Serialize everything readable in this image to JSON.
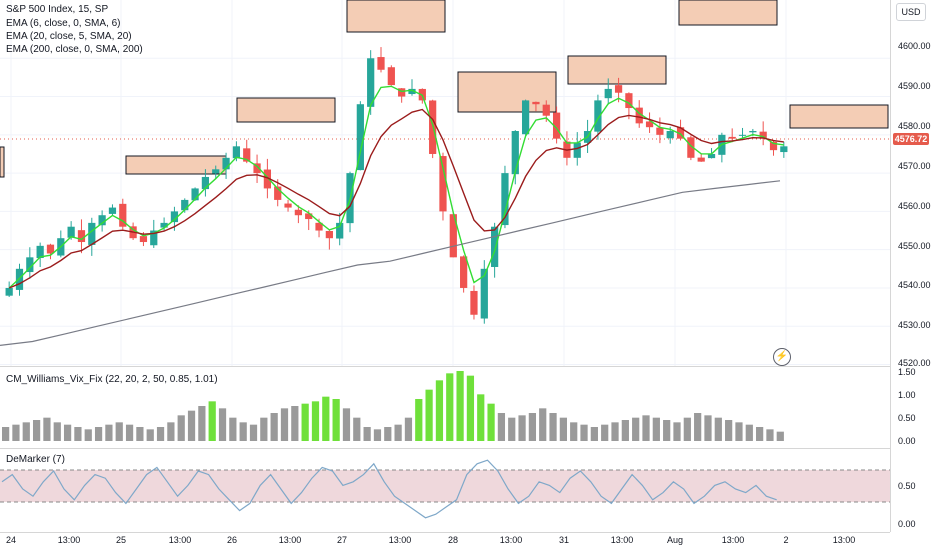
{
  "legend": {
    "symbol": "S&P 500 Index, 15, SP",
    "ema1": "EMA (6, close, 0, SMA, 6)",
    "ema2": "EMA (20, close, 5, SMA, 20)",
    "ema3": "EMA (200, close, 0, SMA, 200)",
    "wvf": "CM_Williams_Vix_Fix (22, 20, 2, 50, 0.85, 1.01)",
    "demarker": "DeMarker (7)"
  },
  "currency": "USD",
  "last_price": "4576.72",
  "price_axis": [
    "4600.00",
    "4590.00",
    "4580.00",
    "4570.00",
    "4560.00",
    "4550.00",
    "4540.00",
    "4530.00",
    "4520.00"
  ],
  "wvf_axis": [
    "1.50",
    "1.00",
    "0.50",
    "0.00"
  ],
  "dem_axis": [
    "0.50",
    "0.00"
  ],
  "time_axis": [
    "24",
    "13:00",
    "25",
    "13:00",
    "26",
    "13:00",
    "27",
    "13:00",
    "28",
    "13:00",
    "31",
    "13:00",
    "Aug",
    "13:00",
    "2",
    "13:00"
  ],
  "colors": {
    "up": "#26a69a",
    "down": "#ef5350",
    "ema6": "#33dd33",
    "ema20": "#9b1c1c",
    "ema200": "#787b86",
    "wvf_gray": "#9a9a9a",
    "wvf_lime": "#6fe03a",
    "dem_line": "#7fa8c9",
    "dem_band": "#e8c8cd",
    "box_fill": "#f4cdb5"
  },
  "chart_data": {
    "type": "candlestick",
    "y_range": [
      4517,
      4610
    ],
    "days": [
      "24",
      "25",
      "26",
      "27",
      "28",
      "31",
      "Aug",
      "2"
    ],
    "close_series": [
      4540,
      4545,
      4548,
      4551,
      4549,
      4553,
      4556,
      4552,
      4557,
      4559,
      4561,
      4556,
      4553,
      4552,
      4555,
      4557,
      4560,
      4563,
      4566,
      4569,
      4571,
      4574,
      4577,
      4573,
      4570,
      4566,
      4563,
      4561,
      4559,
      4558,
      4555,
      4553,
      4557,
      4570,
      4588,
      4600,
      4597,
      4593,
      4590,
      4592,
      4589,
      4575,
      4560,
      4548,
      4540,
      4533,
      4545,
      4556,
      4570,
      4581,
      4589,
      4588,
      4585,
      4579,
      4574,
      4578,
      4581,
      4589,
      4592,
      4591,
      4587,
      4583,
      4582,
      4580,
      4581,
      4579,
      4574,
      4573,
      4575,
      4580,
      4579,
      4580,
      4581,
      4579,
      4576,
      4577
    ],
    "ema200_series": [
      4525,
      4526,
      4528,
      4530,
      4532,
      4534,
      4536,
      4538,
      4540,
      4542,
      4544,
      4546,
      4547,
      4549,
      4551,
      4553,
      4555,
      4557,
      4559,
      4561,
      4563,
      4565,
      4566,
      4567,
      4568
    ],
    "wvf_values": [
      0.3,
      0.35,
      0.4,
      0.45,
      0.5,
      0.4,
      0.35,
      0.3,
      0.25,
      0.3,
      0.35,
      0.4,
      0.35,
      0.3,
      0.25,
      0.3,
      0.4,
      0.55,
      0.65,
      0.75,
      0.85,
      0.7,
      0.5,
      0.4,
      0.35,
      0.5,
      0.6,
      0.7,
      0.75,
      0.8,
      0.85,
      0.95,
      0.9,
      0.7,
      0.5,
      0.3,
      0.25,
      0.3,
      0.35,
      0.5,
      0.9,
      1.1,
      1.3,
      1.45,
      1.5,
      1.4,
      1.0,
      0.8,
      0.6,
      0.5,
      0.55,
      0.6,
      0.7,
      0.6,
      0.5,
      0.4,
      0.35,
      0.3,
      0.35,
      0.4,
      0.45,
      0.5,
      0.55,
      0.5,
      0.45,
      0.4,
      0.5,
      0.6,
      0.55,
      0.5,
      0.45,
      0.4,
      0.35,
      0.3,
      0.25,
      0.2
    ],
    "dem_values": [
      0.6,
      0.7,
      0.5,
      0.4,
      0.6,
      0.75,
      0.5,
      0.35,
      0.55,
      0.7,
      0.65,
      0.45,
      0.3,
      0.5,
      0.7,
      0.8,
      0.6,
      0.4,
      0.55,
      0.75,
      0.7,
      0.5,
      0.35,
      0.2,
      0.3,
      0.55,
      0.7,
      0.5,
      0.3,
      0.45,
      0.65,
      0.8,
      0.75,
      0.55,
      0.6,
      0.7,
      0.85,
      0.6,
      0.4,
      0.3,
      0.2,
      0.1,
      0.15,
      0.25,
      0.35,
      0.7,
      0.85,
      0.9,
      0.75,
      0.5,
      0.3,
      0.4,
      0.6,
      0.55,
      0.45,
      0.65,
      0.75,
      0.6,
      0.4,
      0.3,
      0.5,
      0.7,
      0.55,
      0.35,
      0.45,
      0.6,
      0.5,
      0.3,
      0.4,
      0.55,
      0.6,
      0.5,
      0.45,
      0.55,
      0.4,
      0.35
    ]
  }
}
